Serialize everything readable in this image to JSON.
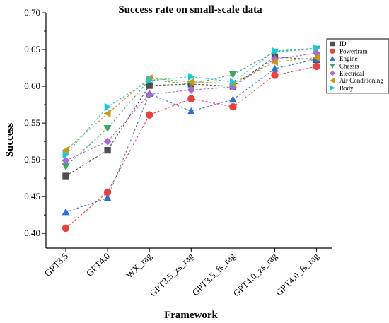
{
  "chart_data": {
    "type": "line",
    "title": "Success rate on small-scale data",
    "xlabel": "Framework",
    "ylabel": "Success",
    "categories": [
      "GPT3.5",
      "GPT4.0",
      "WX_rag",
      "GPT3.5_zs_rag",
      "GPT3.5_fs_rag",
      "GPT4.0_zs_rag",
      "GPT4.0_fs_rag"
    ],
    "ylim": [
      0.38,
      0.7
    ],
    "yticks": [
      "0.40",
      "0.45",
      "0.50",
      "0.55",
      "0.60",
      "0.65",
      "0.70"
    ],
    "grid": false,
    "legend_position": "top-right",
    "series": [
      {
        "name": "ID",
        "marker": "square",
        "color": "#4d4d4d",
        "values": [
          0.478,
          0.513,
          0.601,
          0.603,
          0.6,
          0.64,
          0.636
        ]
      },
      {
        "name": "Powertrain",
        "marker": "circle",
        "color": "#e8413f",
        "values": [
          0.407,
          0.456,
          0.561,
          0.583,
          0.572,
          0.615,
          0.627
        ]
      },
      {
        "name": "Engine",
        "marker": "triangle-up",
        "color": "#2f6fd1",
        "values": [
          0.429,
          0.448,
          0.59,
          0.566,
          0.582,
          0.624,
          0.637
        ]
      },
      {
        "name": "Chassis",
        "marker": "triangle-down",
        "color": "#3fa565",
        "values": [
          0.491,
          0.543,
          0.609,
          0.603,
          0.616,
          0.647,
          0.651
        ]
      },
      {
        "name": "Electrical",
        "marker": "diamond",
        "color": "#a66ad4",
        "values": [
          0.499,
          0.525,
          0.589,
          0.595,
          0.599,
          0.637,
          0.645
        ]
      },
      {
        "name": "Air Conditioning",
        "marker": "triangle-left",
        "color": "#c59a12",
        "values": [
          0.513,
          0.563,
          0.611,
          0.606,
          0.604,
          0.633,
          0.639
        ]
      },
      {
        "name": "Body",
        "marker": "triangle-right",
        "color": "#1cc7d8",
        "values": [
          0.507,
          0.572,
          0.608,
          0.613,
          0.606,
          0.648,
          0.652
        ]
      }
    ]
  }
}
